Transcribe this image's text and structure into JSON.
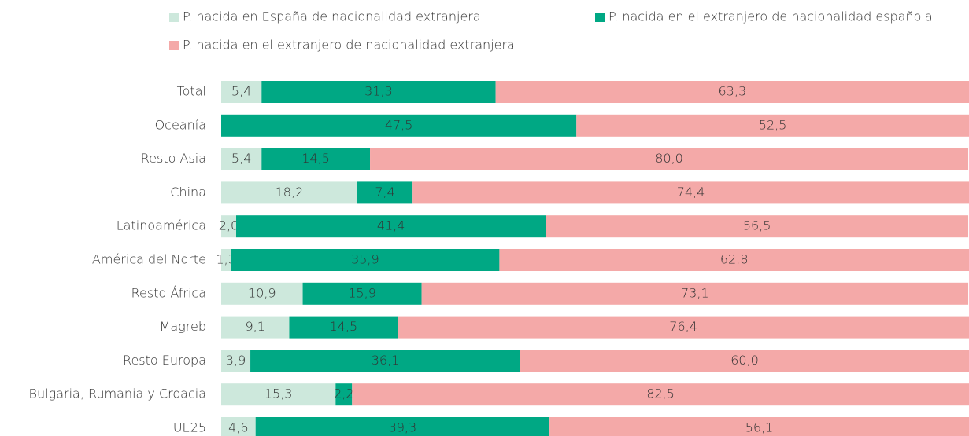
{
  "chart_data": {
    "type": "stacked-bar-horizontal",
    "categories": [
      "Total",
      "Oceanía",
      "Resto Asia",
      "China",
      "Latinoamérica",
      "América del Norte",
      "Resto África",
      "Magreb",
      "Resto Europa",
      "Bulgaria, Rumania y Croacia",
      "UE25"
    ],
    "series": [
      {
        "name": "P. nacida en España de nacionalidad extranjera",
        "color": "#cde8dc",
        "label_color": "#333333",
        "values": [
          5.4,
          null,
          5.4,
          18.2,
          2.0,
          1.3,
          10.9,
          9.1,
          3.9,
          15.3,
          4.6
        ],
        "value_labels": [
          "5,4",
          null,
          "5,4",
          "18,2",
          "2,0",
          "1,3",
          "10,9",
          "9,1",
          "3,9",
          "15,3",
          "4,6"
        ]
      },
      {
        "name": "P. nacida en el extranjero de nacionalidad española",
        "color": "#00a884",
        "label_color": "#ffffff",
        "values": [
          31.3,
          47.5,
          14.5,
          7.4,
          41.4,
          35.9,
          15.9,
          14.5,
          36.1,
          2.2,
          39.3
        ],
        "value_labels": [
          "31,3",
          "47,5",
          "14,5",
          "7,4",
          "41,4",
          "35,9",
          "15,9",
          "14,5",
          "36,1",
          "2,2",
          "39,3"
        ]
      },
      {
        "name": "P. nacida en el extranjero de nacionalidad extranjera",
        "color": "#f4a9a8",
        "label_color": "#333333",
        "values": [
          63.3,
          52.5,
          80.0,
          74.4,
          56.5,
          62.8,
          73.1,
          76.4,
          60.0,
          82.5,
          56.1
        ],
        "value_labels": [
          "63,3",
          "52,5",
          "80,0",
          "74,4",
          "56,5",
          "62,8",
          "73,1",
          "76,4",
          "60,0",
          "82,5",
          "56,1"
        ]
      }
    ],
    "xlim": [
      0,
      100
    ],
    "legend": "top"
  }
}
